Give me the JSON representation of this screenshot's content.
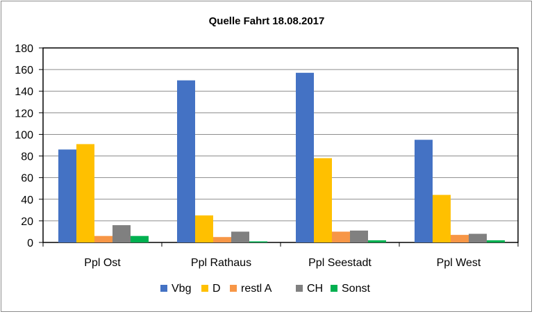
{
  "chart_data": {
    "type": "bar",
    "title": "Quelle Fahrt 18.08.2017",
    "xlabel": "",
    "ylabel": "",
    "categories": [
      "Ppl Ost",
      "Ppl Rathaus",
      "Ppl Seestadt",
      "Ppl West"
    ],
    "series": [
      {
        "name": "Vbg",
        "color": "#4472C4",
        "values": [
          86,
          150,
          157,
          95
        ]
      },
      {
        "name": "D",
        "color": "#FFC000",
        "values": [
          91,
          25,
          78,
          44
        ]
      },
      {
        "name": "restl A",
        "color": "#F79646",
        "values": [
          6,
          5,
          10,
          7
        ]
      },
      {
        "name": "CH",
        "color": "#808080",
        "values": [
          16,
          10,
          11,
          8
        ]
      },
      {
        "name": "Sonst",
        "color": "#00B050",
        "values": [
          6,
          1,
          2,
          2
        ]
      }
    ],
    "ylim": [
      0,
      180
    ],
    "yticks": [
      0,
      20,
      40,
      60,
      80,
      100,
      120,
      140,
      160,
      180
    ],
    "grid": true,
    "legend_position": "bottom"
  }
}
